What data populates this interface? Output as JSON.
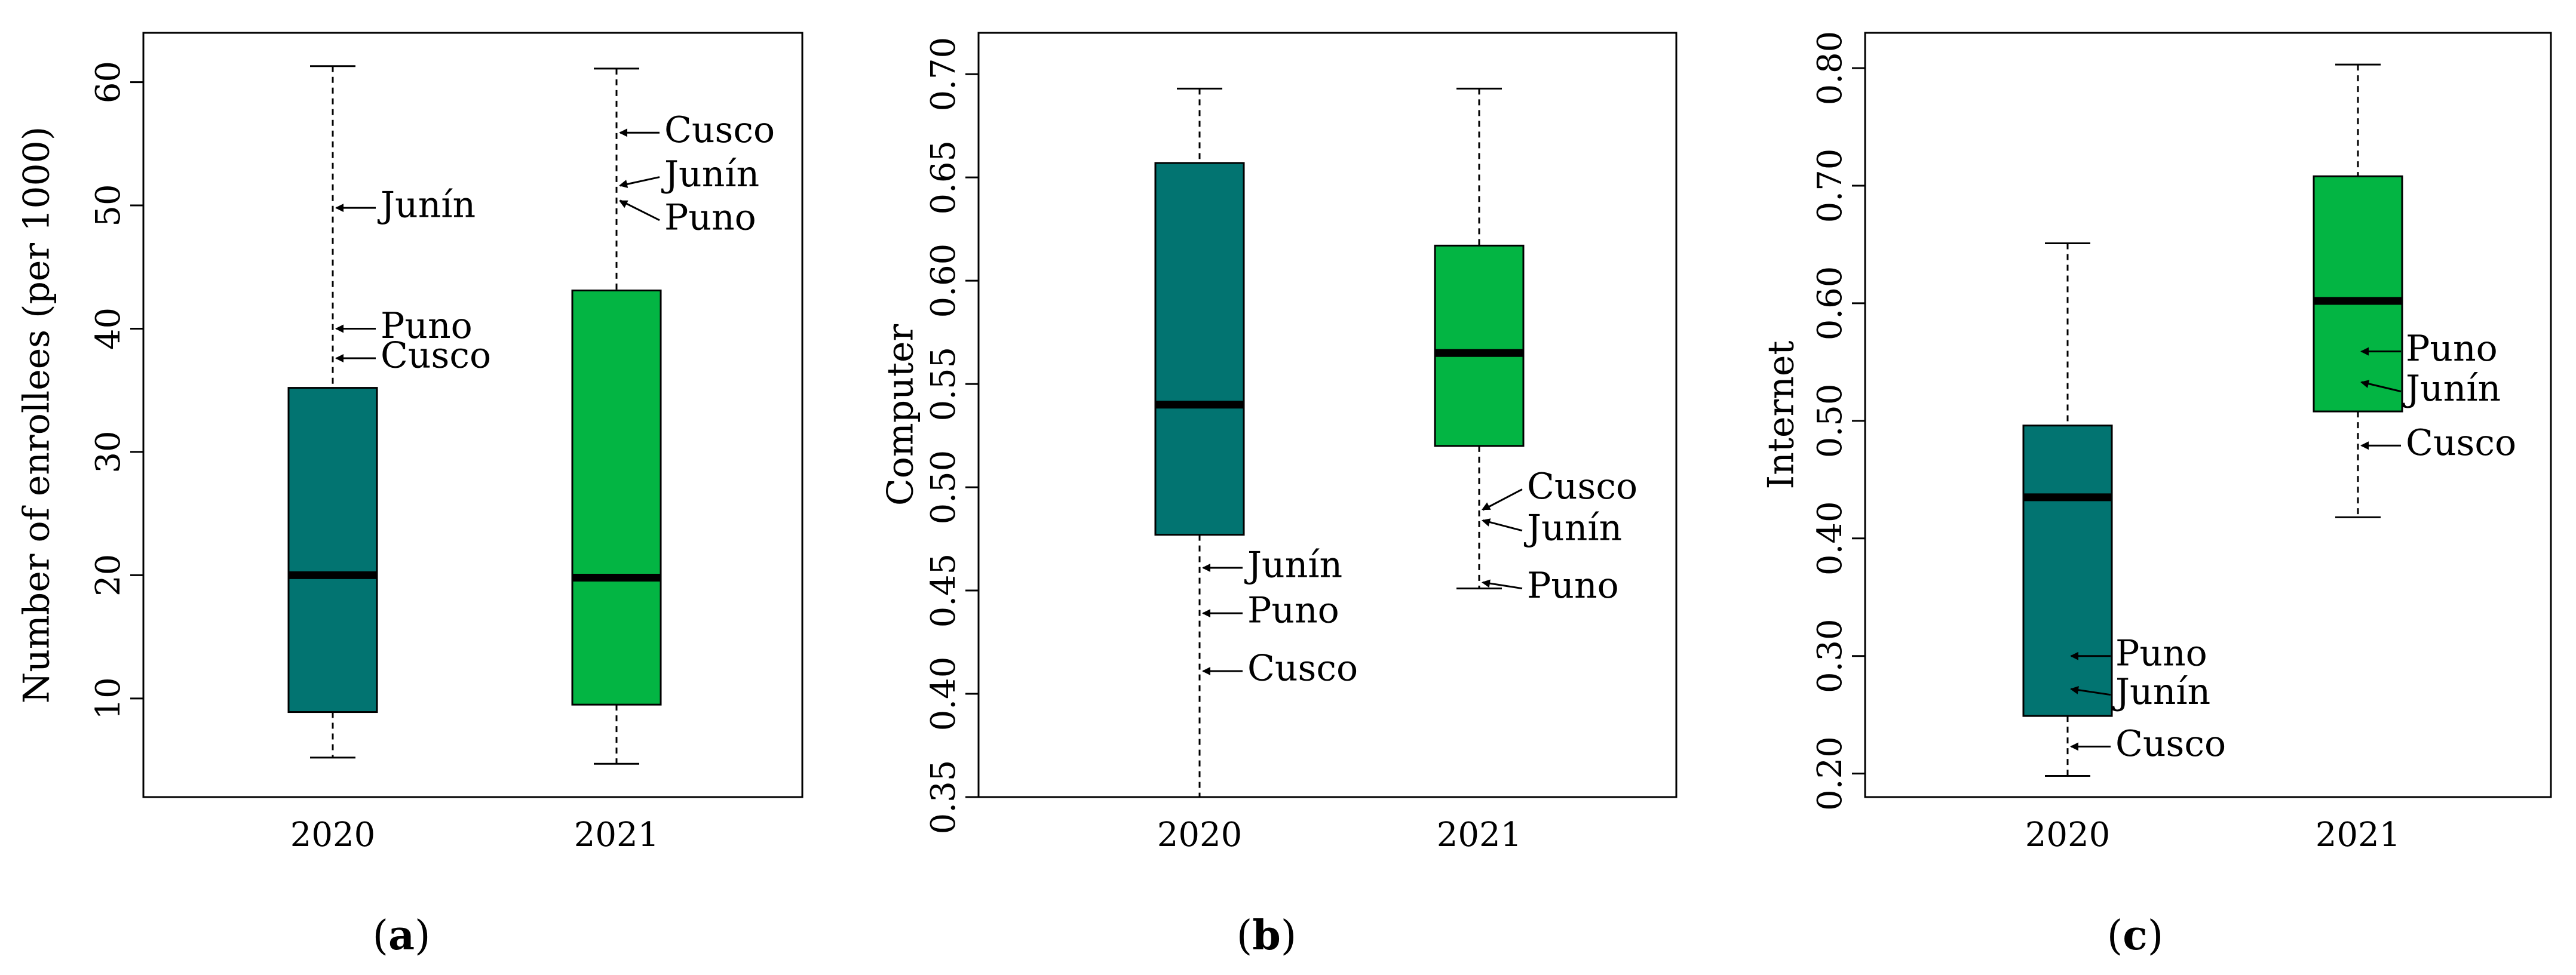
{
  "colors": {
    "2020": "#027471",
    "2021": "#03b543",
    "median": "#000000",
    "frame": "#000000"
  },
  "chart_data": [
    {
      "type": "box",
      "panel": "a",
      "panel_label": {
        "open": "(",
        "letter": "a",
        "close": ")"
      },
      "ylabel": "Number of enrollees (per 1000)",
      "xlabel": "",
      "categories": [
        "2020",
        "2021"
      ],
      "ylim": [
        2,
        64
      ],
      "yticks": [
        10,
        20,
        30,
        40,
        50,
        60
      ],
      "ytick_labels": [
        "10",
        "20",
        "30",
        "40",
        "50",
        "60"
      ],
      "boxes": [
        {
          "category": "2020",
          "min": 5.2,
          "q1": 8.9,
          "median": 20.0,
          "q3": 35.2,
          "max": 61.3
        },
        {
          "category": "2021",
          "min": 4.7,
          "q1": 9.5,
          "median": 19.8,
          "q3": 43.1,
          "max": 61.1
        }
      ],
      "annotations": [
        {
          "category": "2020",
          "text": "Junín",
          "value": 49.8,
          "label_value": 49.8
        },
        {
          "category": "2020",
          "text": "Puno",
          "value": 40.0,
          "label_value": 40.0
        },
        {
          "category": "2020",
          "text": "Cusco",
          "value": 37.6,
          "label_value": 37.6
        },
        {
          "category": "2021",
          "text": "Cusco",
          "value": 55.9,
          "label_value": 55.9
        },
        {
          "category": "2021",
          "text": "Junín",
          "value": 51.6,
          "label_value": 52.3
        },
        {
          "category": "2021",
          "text": "Puno",
          "value": 50.4,
          "label_value": 48.8
        }
      ]
    },
    {
      "type": "box",
      "panel": "b",
      "panel_label": {
        "open": "(",
        "letter": "b",
        "close": ")"
      },
      "ylabel": "Computer",
      "xlabel": "",
      "categories": [
        "2020",
        "2021"
      ],
      "ylim": [
        0.35,
        0.72
      ],
      "yticks": [
        0.35,
        0.4,
        0.45,
        0.5,
        0.55,
        0.6,
        0.65,
        0.7
      ],
      "ytick_labels": [
        "0.35",
        "0.40",
        "0.45",
        "0.50",
        "0.55",
        "0.60",
        "0.65",
        "0.70"
      ],
      "boxes": [
        {
          "category": "2020",
          "min": 0.35,
          "q1": 0.477,
          "median": 0.54,
          "q3": 0.657,
          "max": 0.693
        },
        {
          "category": "2021",
          "min": 0.451,
          "q1": 0.52,
          "median": 0.565,
          "q3": 0.617,
          "max": 0.693
        }
      ],
      "annotations": [
        {
          "category": "2020",
          "text": "Junín",
          "value": 0.461,
          "label_value": 0.461
        },
        {
          "category": "2020",
          "text": "Puno",
          "value": 0.439,
          "label_value": 0.439
        },
        {
          "category": "2020",
          "text": "Cusco",
          "value": 0.411,
          "label_value": 0.411
        },
        {
          "category": "2021",
          "text": "Cusco",
          "value": 0.489,
          "label_value": 0.499
        },
        {
          "category": "2021",
          "text": "Junín",
          "value": 0.484,
          "label_value": 0.479
        },
        {
          "category": "2021",
          "text": "Puno",
          "value": 0.454,
          "label_value": 0.451
        }
      ]
    },
    {
      "type": "box",
      "panel": "c",
      "panel_label": {
        "open": "(",
        "letter": "c",
        "close": ")"
      },
      "ylabel": "Internet",
      "xlabel": "",
      "categories": [
        "2020",
        "2021"
      ],
      "ylim": [
        0.18,
        0.83
      ],
      "yticks": [
        0.2,
        0.3,
        0.4,
        0.5,
        0.6,
        0.7,
        0.8
      ],
      "ytick_labels": [
        "0.20",
        "0.30",
        "0.40",
        "0.50",
        "0.60",
        "0.70",
        "0.80"
      ],
      "boxes": [
        {
          "category": "2020",
          "min": 0.198,
          "q1": 0.249,
          "median": 0.435,
          "q3": 0.496,
          "max": 0.651
        },
        {
          "category": "2021",
          "min": 0.418,
          "q1": 0.508,
          "median": 0.602,
          "q3": 0.708,
          "max": 0.803
        }
      ],
      "annotations": [
        {
          "category": "2020",
          "text": "Puno",
          "value": 0.3,
          "label_value": 0.3
        },
        {
          "category": "2020",
          "text": "Junín",
          "value": 0.272,
          "label_value": 0.267
        },
        {
          "category": "2020",
          "text": "Cusco",
          "value": 0.223,
          "label_value": 0.223
        },
        {
          "category": "2021",
          "text": "Puno",
          "value": 0.559,
          "label_value": 0.559
        },
        {
          "category": "2021",
          "text": "Junín",
          "value": 0.533,
          "label_value": 0.525
        },
        {
          "category": "2021",
          "text": "Cusco",
          "value": 0.479,
          "label_value": 0.479
        }
      ]
    }
  ]
}
